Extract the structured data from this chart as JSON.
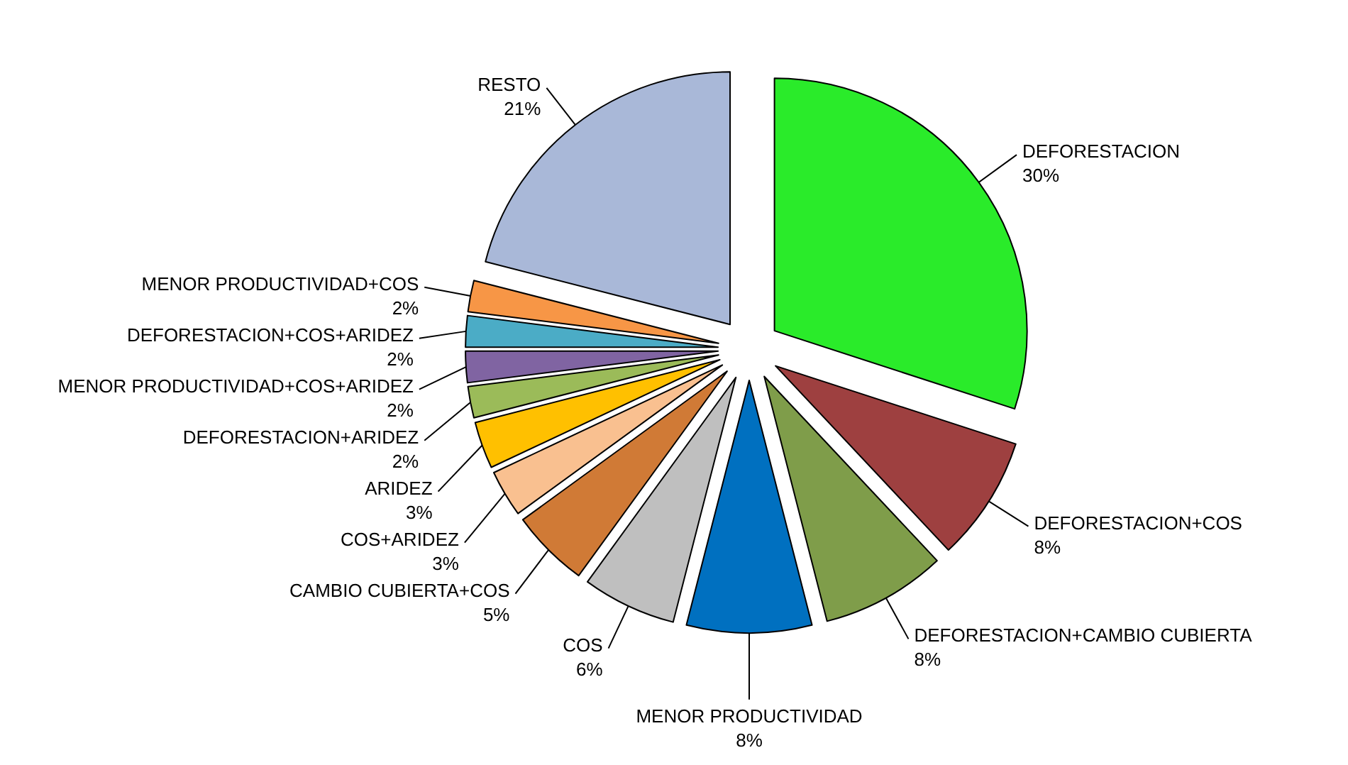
{
  "chart_data": {
    "type": "pie",
    "categories": [
      "DEFORESTACION",
      "DEFORESTACION+COS",
      "DEFORESTACION+CAMBIO CUBIERTA",
      "MENOR PRODUCTIVIDAD",
      "COS",
      "CAMBIO CUBIERTA+COS",
      "COS+ARIDEZ",
      "ARIDEZ",
      "DEFORESTACION+ARIDEZ",
      "MENOR PRODUCTIVIDAD+COS+ARIDEZ",
      "DEFORESTACION+COS+ARIDEZ",
      "MENOR PRODUCTIVIDAD+COS",
      "RESTO"
    ],
    "values": [
      30,
      8,
      8,
      8,
      6,
      5,
      3,
      3,
      2,
      2,
      2,
      2,
      21
    ],
    "colors": [
      "#2aeb2a",
      "#9e4040",
      "#7f9d4a",
      "#0070c0",
      "#bfbfbf",
      "#d07a36",
      "#f9c090",
      "#ffc000",
      "#9bbb59",
      "#8064a2",
      "#4bacc6",
      "#f79646",
      "#a9b8d8"
    ],
    "value_labels": [
      "30%",
      "8%",
      "8%",
      "8%",
      "6%",
      "5%",
      "3%",
      "3%",
      "2%",
      "2%",
      "2%",
      "2%",
      "21%"
    ]
  }
}
